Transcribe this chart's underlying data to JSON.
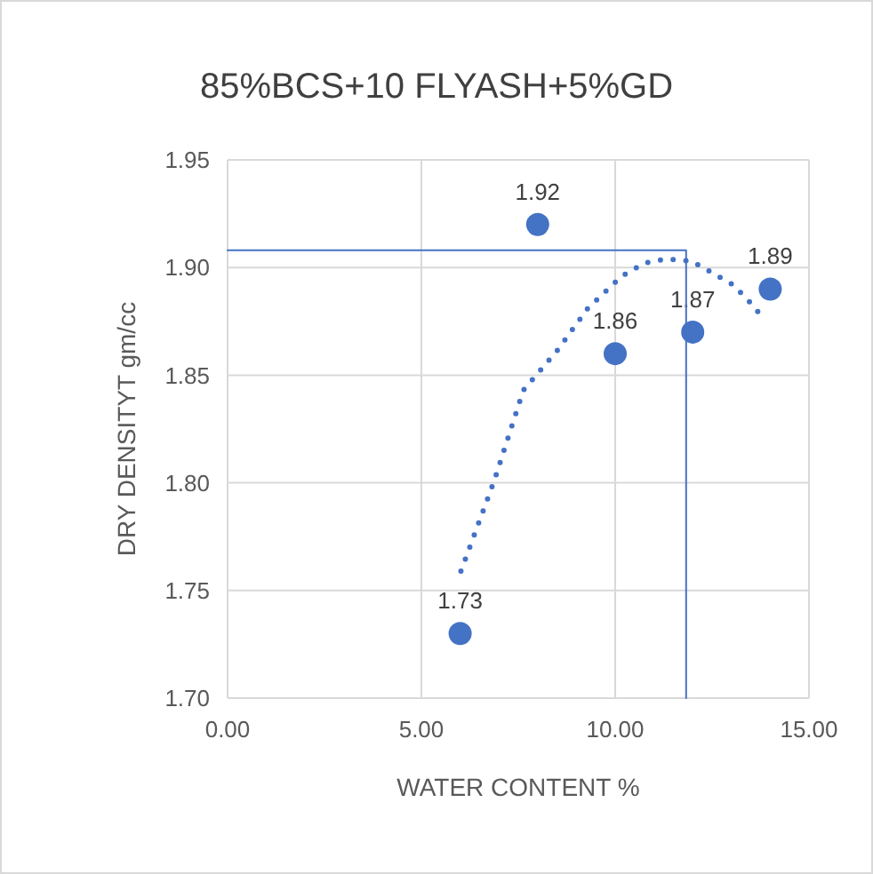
{
  "chart_data": {
    "type": "scatter",
    "title": "85%BCS+10 FLYASH+5%GD",
    "xlabel": "WATER CONTENT %",
    "ylabel": "DRY DENSITYT gm/cc",
    "xlim": [
      0,
      15
    ],
    "ylim": [
      1.7,
      1.95
    ],
    "xticks": [
      {
        "value": 0,
        "label": "0.00"
      },
      {
        "value": 5,
        "label": "5.00"
      },
      {
        "value": 10,
        "label": "10.00"
      },
      {
        "value": 15,
        "label": "15.00"
      }
    ],
    "yticks": [
      {
        "value": 1.7,
        "label": "1.70"
      },
      {
        "value": 1.75,
        "label": "1.75"
      },
      {
        "value": 1.8,
        "label": "1.80"
      },
      {
        "value": 1.85,
        "label": "1.85"
      },
      {
        "value": 1.9,
        "label": "1.90"
      },
      {
        "value": 1.95,
        "label": "1.95"
      }
    ],
    "grid": true,
    "series": [
      {
        "color": "#4472c4",
        "marker": "circle",
        "x": [
          6,
          8,
          10,
          12,
          14
        ],
        "values": [
          1.73,
          1.92,
          1.86,
          1.87,
          1.89
        ],
        "value_labels": [
          "1.73",
          "1.92",
          "1.86",
          "1.87",
          "1.89"
        ]
      },
      {
        "type": "line",
        "color": "#4472c4",
        "line_style": "dotted",
        "marker": "none",
        "x": [
          6.02,
          6.88,
          7.63,
          8.53,
          9.29,
          10.17,
          10.75,
          11.32,
          11.97,
          13.04,
          13.47,
          13.89
        ],
        "values": [
          1.759,
          1.801,
          1.843,
          1.862,
          1.881,
          1.896,
          1.902,
          1.904,
          1.903,
          1.892,
          1.884,
          1.875
        ]
      },
      {
        "type": "line",
        "color": "#4472c4",
        "line_style": "solid",
        "marker": "none",
        "x": [
          0,
          11.83,
          11.83
        ],
        "values": [
          1.908,
          1.908,
          1.7
        ]
      }
    ]
  }
}
